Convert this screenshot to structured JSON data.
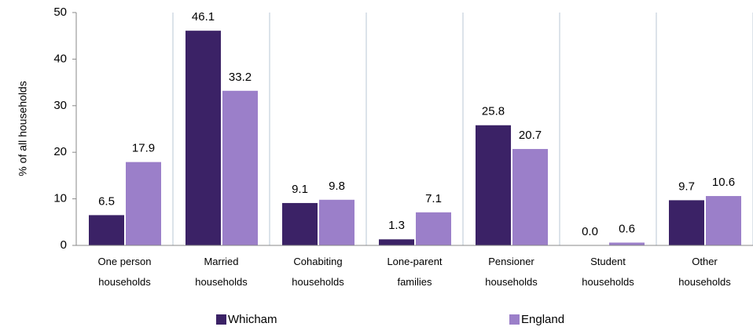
{
  "chart_data": {
    "type": "bar",
    "y_label": "% of all households",
    "categories": [
      "One person households",
      "Married households",
      "Cohabiting households",
      "Lone-parent families",
      "Pensioner households",
      "Student households",
      "Other households"
    ],
    "series": [
      {
        "name": "Whicham",
        "color": "#3b2266",
        "values": [
          6.5,
          46.1,
          9.1,
          1.3,
          25.8,
          0,
          9.7
        ],
        "value_labels": [
          "6.5",
          "46.1",
          "9.1",
          "1.3",
          "25.8",
          "0.0",
          "9.7"
        ]
      },
      {
        "name": "England",
        "color": "#9b7fc9",
        "values": [
          17.9,
          33.2,
          9.8,
          7.1,
          20.7,
          0.6,
          10.6
        ],
        "value_labels": [
          "17.9",
          "33.2",
          "9.8",
          "7.1",
          "20.7",
          "0.6",
          "10.6"
        ]
      }
    ],
    "ylim": [
      0,
      50
    ],
    "yticks": [
      0,
      10,
      20,
      30,
      40,
      50
    ],
    "grid": false,
    "legend": "bottom"
  }
}
